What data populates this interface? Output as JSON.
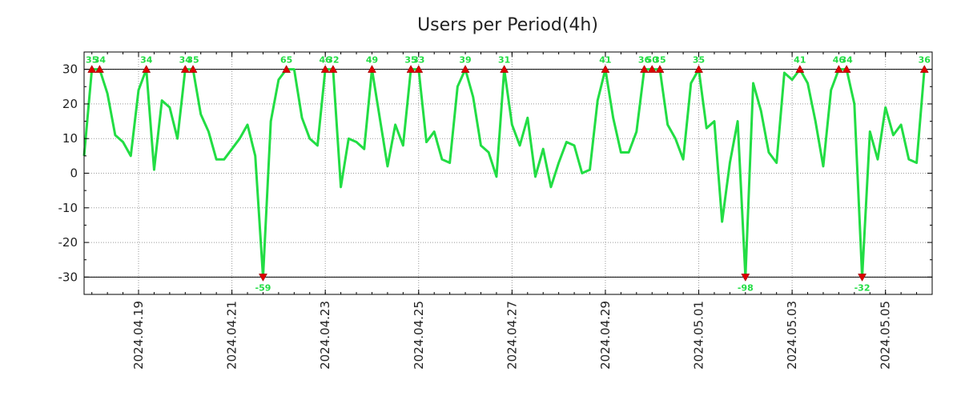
{
  "chart_data": {
    "type": "line",
    "title": "Users per Period(4h)",
    "xlabel": "",
    "ylabel": "",
    "ylim": [
      -35,
      35
    ],
    "y_ticks": [
      30,
      20,
      10,
      0,
      -10,
      -20,
      -30
    ],
    "y_tick_labels": [
      "30",
      "20",
      "10",
      "0",
      "-10",
      "-20",
      "-30"
    ],
    "x_tick_labels": [
      "2024.04.19",
      "2024.04.21",
      "2024.04.23",
      "2024.04.25",
      "2024.04.27",
      "2024.04.29",
      "2024.05.01",
      "2024.05.03",
      "2024.05.05"
    ],
    "x_tick_positions": [
      7,
      19,
      31,
      43,
      55,
      67,
      79,
      91,
      103
    ],
    "x_range": [
      0,
      109
    ],
    "clip_max": 30,
    "clip_min": -30,
    "grid": true,
    "colors": {
      "line": "#22dd44",
      "marker": "#dd0000",
      "label": "#22dd44"
    },
    "series": [
      {
        "name": "Users",
        "values": [
          5,
          35,
          34,
          23,
          11,
          9,
          5,
          24,
          34,
          1,
          21,
          19,
          10,
          34,
          35,
          17,
          12,
          4,
          4,
          7,
          10,
          14,
          5,
          -59,
          15,
          27,
          65,
          30,
          16,
          10,
          8,
          46,
          32,
          -4,
          10,
          9,
          7,
          49,
          16,
          2,
          14,
          8,
          35,
          33,
          9,
          12,
          4,
          3,
          25,
          39,
          22,
          8,
          6,
          -1,
          31,
          14,
          8,
          16,
          -1,
          7,
          -4,
          3,
          9,
          8,
          0,
          1,
          21,
          41,
          16,
          6,
          6,
          12,
          36,
          50,
          35,
          14,
          10,
          4,
          26,
          35,
          13,
          15,
          -14,
          3,
          15,
          -98,
          26,
          18,
          6,
          3,
          29,
          27,
          41,
          26,
          15,
          2,
          24,
          46,
          34,
          20,
          -32,
          12,
          4,
          19,
          11,
          14,
          4,
          3,
          36
        ]
      }
    ],
    "peak_labels": [
      {
        "index": 1,
        "text": "35"
      },
      {
        "index": 2,
        "text": "34"
      },
      {
        "index": 8,
        "text": "34"
      },
      {
        "index": 13,
        "text": "34"
      },
      {
        "index": 14,
        "text": "35"
      },
      {
        "index": 23,
        "text": "-59"
      },
      {
        "index": 26,
        "text": "65"
      },
      {
        "index": 31,
        "text": "46"
      },
      {
        "index": 32,
        "text": "32"
      },
      {
        "index": 37,
        "text": "49"
      },
      {
        "index": 42,
        "text": "35"
      },
      {
        "index": 43,
        "text": "33"
      },
      {
        "index": 49,
        "text": "39"
      },
      {
        "index": 54,
        "text": "31"
      },
      {
        "index": 67,
        "text": "41"
      },
      {
        "index": 72,
        "text": "36"
      },
      {
        "index": 73,
        "text": "50"
      },
      {
        "index": 74,
        "text": "35"
      },
      {
        "index": 79,
        "text": "35"
      },
      {
        "index": 85,
        "text": "-98"
      },
      {
        "index": 92,
        "text": "41"
      },
      {
        "index": 97,
        "text": "46"
      },
      {
        "index": 98,
        "text": "34"
      },
      {
        "index": 100,
        "text": "-32"
      },
      {
        "index": 108,
        "text": "36"
      }
    ]
  }
}
